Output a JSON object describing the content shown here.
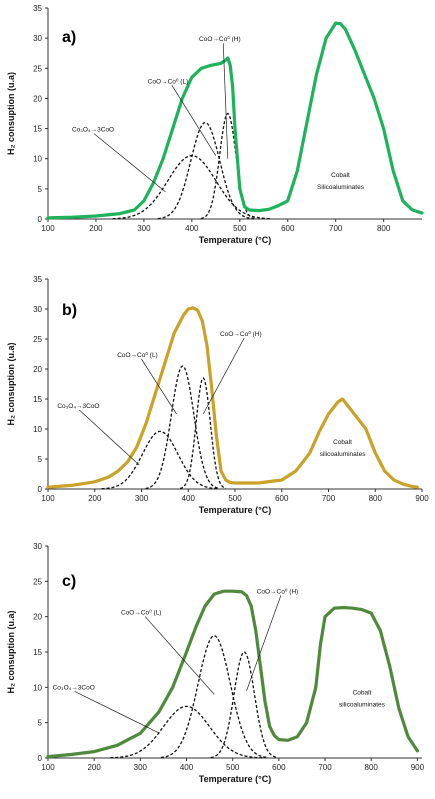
{
  "chart_data": [
    {
      "type": "line",
      "panel_label": "a)",
      "xlabel": "Temperature (°C)",
      "ylabel": "H₂ consuption (u.a)",
      "xlim": [
        100,
        880
      ],
      "ylim": [
        0,
        35
      ],
      "x_ticks": [
        100,
        200,
        300,
        400,
        500,
        600,
        700,
        800
      ],
      "y_ticks": [
        0,
        5,
        10,
        15,
        20,
        25,
        30,
        35
      ],
      "grid": false,
      "series": [
        {
          "role": "measured",
          "color": "#1db35a",
          "x": [
            100,
            150,
            200,
            250,
            280,
            300,
            320,
            340,
            360,
            380,
            400,
            420,
            440,
            460,
            470,
            475,
            480,
            485,
            490,
            500,
            510,
            520,
            540,
            560,
            580,
            600,
            620,
            640,
            660,
            680,
            700,
            710,
            720,
            740,
            760,
            780,
            800,
            820,
            840,
            860,
            880
          ],
          "y": [
            0.2,
            0.3,
            0.5,
            0.9,
            1.5,
            3,
            6,
            10,
            15,
            20,
            23.5,
            25,
            25.5,
            25.8,
            26.3,
            26.7,
            25.5,
            22,
            15,
            5,
            2,
            1.5,
            1.4,
            1.6,
            2.2,
            3,
            8,
            16,
            24,
            30,
            32.5,
            32.4,
            31.5,
            28,
            24,
            20,
            15,
            8,
            3,
            1.5,
            1
          ]
        },
        {
          "role": "deconvolution",
          "center": 400,
          "height": 10.5,
          "sigma": 50
        },
        {
          "role": "deconvolution",
          "center": 428,
          "height": 16,
          "sigma": 30
        },
        {
          "role": "deconvolution",
          "center": 475,
          "height": 17.5,
          "sigma": 17
        }
      ],
      "annotations": [
        {
          "text": "Co₃O₄→3CoO",
          "x": 150,
          "y": 14.5,
          "to_x": 345,
          "to_y": 4.5
        },
        {
          "text": "CoO→Co⁰ (L)",
          "x": 308,
          "y": 22.5,
          "to_x": 450,
          "to_y": 10.5
        },
        {
          "text": "CoO→Co⁰ (H)",
          "x": 415,
          "y": 29.5,
          "to_x": 475,
          "to_y": 10
        },
        {
          "text": "Cobalt",
          "x": 710,
          "y": 7
        },
        {
          "text": "Silicoaluminates",
          "x": 710,
          "y": 5
        }
      ]
    },
    {
      "type": "line",
      "panel_label": "b)",
      "xlabel": "Temperature (°C)",
      "ylabel": "H₂ consuption (u.a)",
      "xlim": [
        100,
        900
      ],
      "ylim": [
        0,
        35
      ],
      "x_ticks": [
        100,
        200,
        300,
        400,
        500,
        600,
        700,
        800,
        900
      ],
      "y_ticks": [
        0,
        5,
        10,
        15,
        20,
        25,
        30,
        35
      ],
      "grid": false,
      "series": [
        {
          "role": "measured",
          "color": "#c9a227",
          "x": [
            100,
            150,
            200,
            230,
            250,
            270,
            290,
            310,
            330,
            350,
            370,
            390,
            400,
            410,
            420,
            430,
            440,
            450,
            460,
            470,
            480,
            490,
            500,
            550,
            600,
            630,
            660,
            680,
            700,
            710,
            720,
            730,
            740,
            760,
            780,
            800,
            820,
            840,
            860,
            880,
            890
          ],
          "y": [
            0.3,
            0.6,
            1.2,
            2,
            3,
            4.5,
            7,
            11,
            16,
            21,
            26,
            29,
            30,
            30.2,
            29.8,
            28,
            24,
            17,
            9,
            3,
            1.5,
            1.1,
            1,
            1,
            1.5,
            3,
            6,
            9.5,
            12.5,
            13.5,
            14.5,
            15,
            14,
            12,
            10,
            6,
            3,
            1.5,
            0.8,
            0.4,
            0.3
          ]
        },
        {
          "role": "deconvolution",
          "center": 340,
          "height": 9.6,
          "sigma": 38
        },
        {
          "role": "deconvolution",
          "center": 388,
          "height": 20.5,
          "sigma": 24
        },
        {
          "role": "deconvolution",
          "center": 432,
          "height": 18.5,
          "sigma": 15
        }
      ],
      "annotations": [
        {
          "text": "Co₃O₄→3CoO",
          "x": 120,
          "y": 13.5,
          "to_x": 295,
          "to_y": 4
        },
        {
          "text": "CoO→Co⁰ (L)",
          "x": 248,
          "y": 22,
          "to_x": 375,
          "to_y": 12.5
        },
        {
          "text": "CoO→Co⁰ (H)",
          "x": 468,
          "y": 25.5,
          "to_x": 432,
          "to_y": 12.5
        },
        {
          "text": "Cobalt",
          "x": 730,
          "y": 7.5
        },
        {
          "text": "silicoaluminates",
          "x": 730,
          "y": 5.5
        }
      ]
    },
    {
      "type": "line",
      "panel_label": "c)",
      "xlabel": "Temperature (°C)",
      "ylabel": "H₂ consuption (u.a)",
      "xlim": [
        100,
        910
      ],
      "ylim": [
        0,
        30
      ],
      "x_ticks": [
        100,
        200,
        300,
        400,
        500,
        600,
        700,
        800,
        900
      ],
      "y_ticks": [
        0,
        5,
        10,
        15,
        20,
        25,
        30
      ],
      "grid": false,
      "series": [
        {
          "role": "measured",
          "color": "#4f8a3c",
          "x": [
            100,
            150,
            200,
            250,
            300,
            340,
            370,
            400,
            420,
            440,
            460,
            480,
            500,
            520,
            530,
            540,
            550,
            560,
            570,
            580,
            590,
            600,
            620,
            640,
            660,
            680,
            690,
            700,
            720,
            740,
            760,
            780,
            800,
            820,
            840,
            860,
            880,
            890,
            900
          ],
          "y": [
            0.2,
            0.5,
            0.9,
            1.8,
            3.5,
            6.5,
            10,
            15,
            18.5,
            21.5,
            23.2,
            23.6,
            23.6,
            23.5,
            23,
            21.5,
            18,
            13,
            8,
            4.5,
            3.2,
            2.6,
            2.5,
            3,
            5,
            10,
            16,
            20,
            21.2,
            21.3,
            21.2,
            21,
            20.5,
            18,
            13,
            7,
            3,
            2,
            1
          ]
        },
        {
          "role": "deconvolution",
          "center": 400,
          "height": 7.3,
          "sigma": 50
        },
        {
          "role": "deconvolution",
          "center": 460,
          "height": 17.3,
          "sigma": 35
        },
        {
          "role": "deconvolution",
          "center": 525,
          "height": 15,
          "sigma": 22
        }
      ],
      "annotations": [
        {
          "text": "Co₃O₄→3CoO",
          "x": 110,
          "y": 9.7,
          "to_x": 342,
          "to_y": 3.5
        },
        {
          "text": "CoO→Co⁰ (L)",
          "x": 258,
          "y": 20.3,
          "to_x": 460,
          "to_y": 9
        },
        {
          "text": "CoO→Co⁰ (H)",
          "x": 552,
          "y": 23.3,
          "to_x": 530,
          "to_y": 9.5
        },
        {
          "text": "Cobalt",
          "x": 780,
          "y": 9
        },
        {
          "text": "silicoaluminates",
          "x": 780,
          "y": 7.3
        }
      ]
    }
  ]
}
